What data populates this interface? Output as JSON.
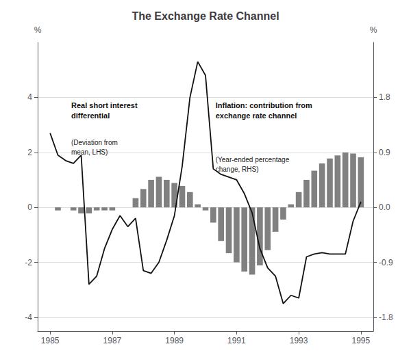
{
  "chart_data": {
    "type": "line",
    "title": "The Exchange Rate Channel",
    "ylabel": "%",
    "y2label": "%",
    "annotations": [
      "Real short interest\ndifferential",
      "(Deviation from\nmean, LHS)",
      "Inflation: contribution from\nexchange rate channel",
      "(Year-ended percentage\nchange, RHS)"
    ],
    "x": [
      1985.0,
      1985.25,
      1985.5,
      1985.75,
      1986.0,
      1986.25,
      1986.5,
      1986.75,
      1987.0,
      1987.25,
      1987.5,
      1987.75,
      1988.0,
      1988.25,
      1988.5,
      1988.75,
      1989.0,
      1989.25,
      1989.5,
      1989.75,
      1990.0,
      1990.25,
      1990.5,
      1990.75,
      1991.0,
      1991.25,
      1991.5,
      1991.75,
      1992.0,
      1992.25,
      1992.5,
      1992.75,
      1993.0,
      1993.25,
      1993.5,
      1993.75,
      1994.0,
      1994.25,
      1994.5,
      1994.75,
      1995.0
    ],
    "xlim": [
      1984.6,
      1995.4
    ],
    "xticks": [
      1985,
      1987,
      1989,
      1991,
      1993,
      1995
    ],
    "ylim": [
      -4.5,
      6.0
    ],
    "yticks": [
      -4,
      -2,
      0,
      2,
      4
    ],
    "y2lim": [
      -2.025,
      2.7
    ],
    "y2ticks": [
      -1.8,
      -0.9,
      {
        "value": 0.0,
        "label": "0.0"
      },
      0.9,
      1.8
    ],
    "grid": true,
    "series": [
      {
        "type": "line",
        "color": "#111111",
        "values": [
          2.7,
          1.9,
          1.7,
          1.6,
          1.9,
          -2.8,
          -2.5,
          -1.5,
          -0.8,
          -0.3,
          -0.7,
          -0.4,
          -2.3,
          -2.4,
          -2.0,
          -1.2,
          -0.3,
          1.5,
          4.0,
          5.3,
          4.8,
          1.4,
          1.2,
          1.1,
          1.0,
          0.5,
          -0.2,
          -1.5,
          -2.2,
          -2.5,
          -3.5,
          -3.2,
          -3.3,
          -1.8,
          -1.7,
          -1.65,
          -1.7,
          -1.7,
          -1.7,
          -0.5,
          0.2
        ]
      },
      {
        "type": "bar",
        "axis": "y2",
        "color": "#808080",
        "values": [
          0.0,
          -0.05,
          0.0,
          -0.05,
          -0.1,
          -0.1,
          -0.05,
          -0.05,
          -0.05,
          0.0,
          0.0,
          0.15,
          0.3,
          0.45,
          0.5,
          0.45,
          0.4,
          0.35,
          0.25,
          0.05,
          -0.05,
          -0.25,
          -0.55,
          -0.75,
          -0.9,
          -1.05,
          -1.1,
          -0.95,
          -0.7,
          -0.4,
          -0.2,
          0.05,
          0.25,
          0.45,
          0.6,
          0.72,
          0.8,
          0.85,
          0.9,
          0.88,
          0.82
        ]
      }
    ]
  }
}
